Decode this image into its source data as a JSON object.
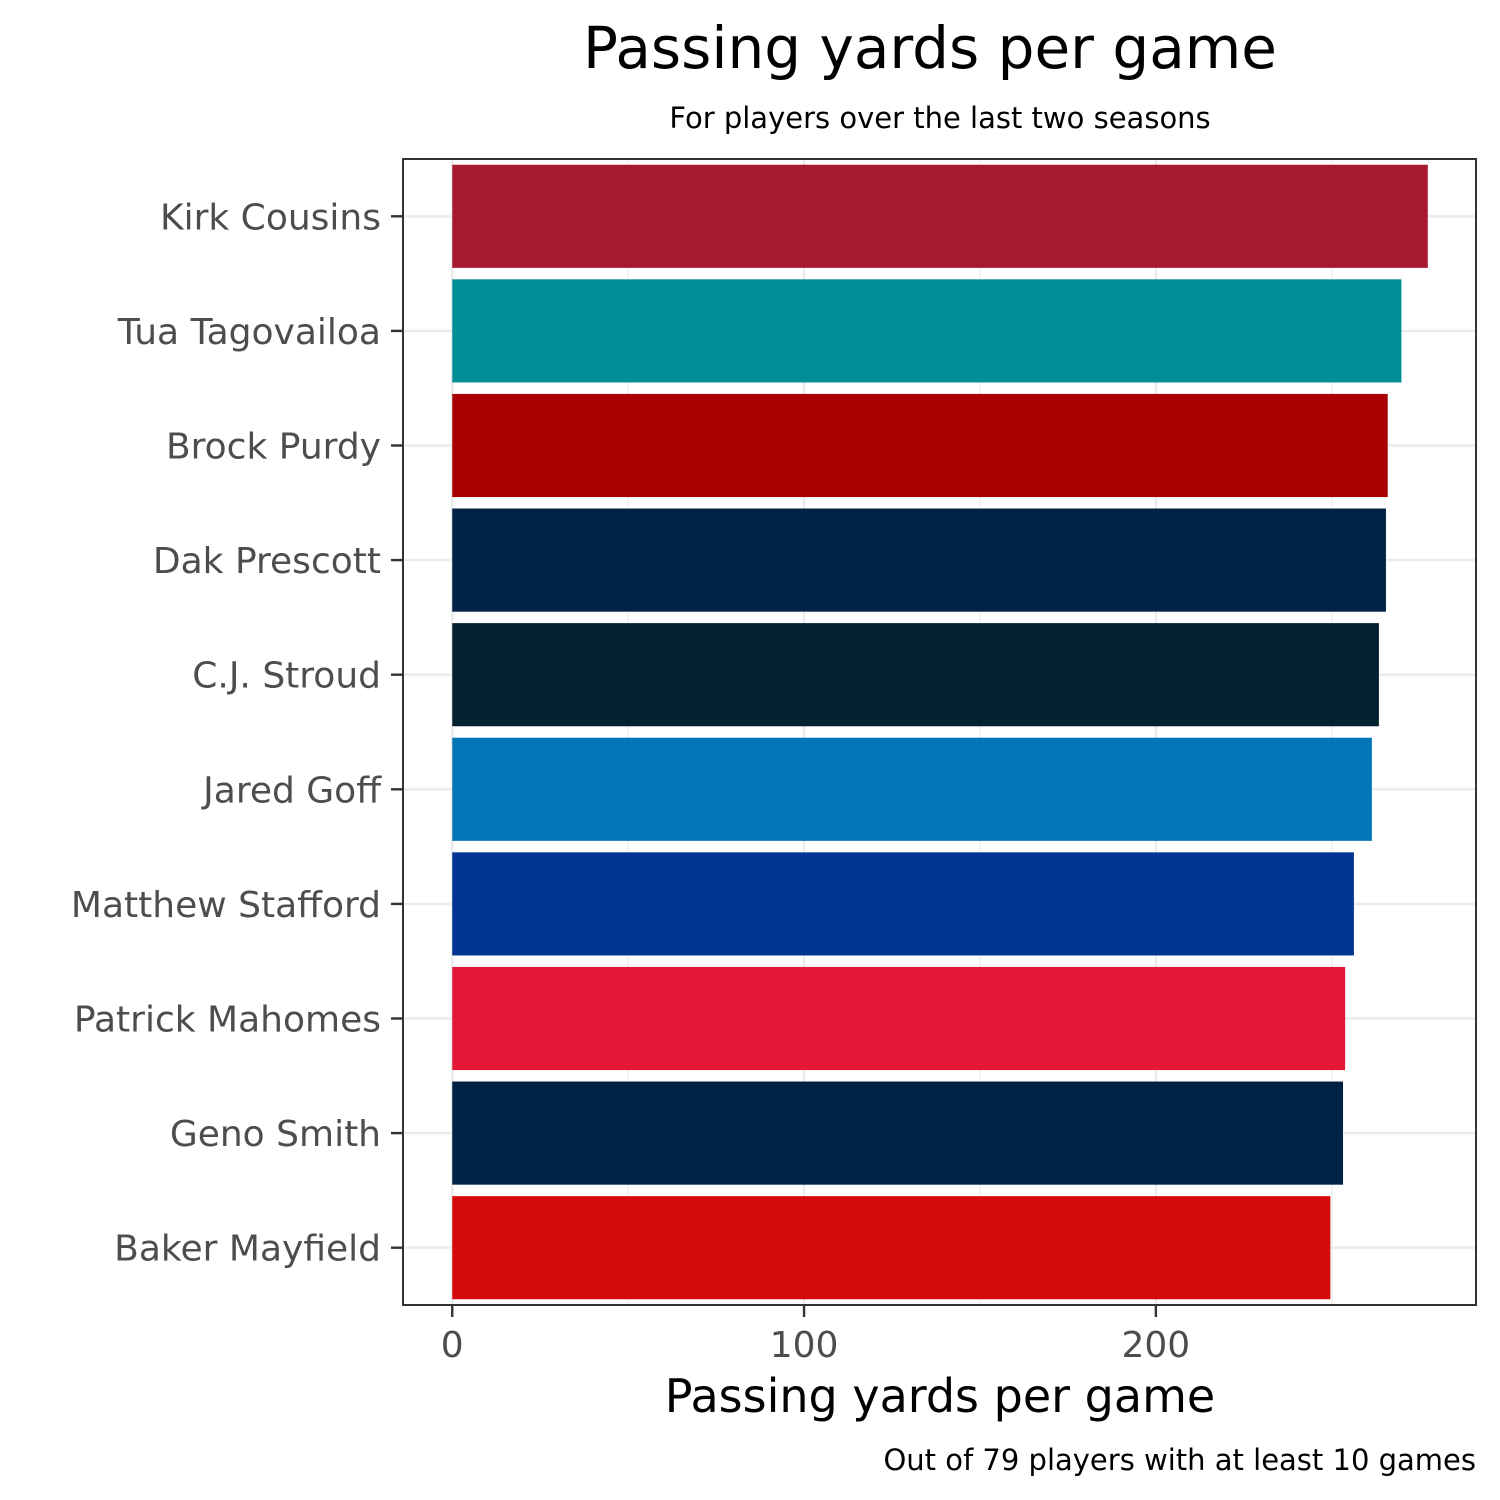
{
  "chart_data": {
    "type": "bar",
    "orientation": "horizontal",
    "title": "Passing yards per game",
    "subtitle": "For players over the last two seasons",
    "xlabel": "Passing yards per game",
    "ylabel": "",
    "caption": "Out of 79 players with at least 10 games",
    "xlim": [
      -14,
      291
    ],
    "xticks": [
      0,
      100,
      200
    ],
    "xtick_labels": [
      "0",
      "100",
      "200"
    ],
    "grid": true,
    "legend": "none",
    "categories": [
      "Kirk Cousins",
      "Tua Tagovailoa",
      "Brock Purdy",
      "Dak Prescott",
      "C.J. Stroud",
      "Jared Goff",
      "Matthew Stafford",
      "Patrick Mahomes",
      "Geno Smith",
      "Baker Mayfield"
    ],
    "values": [
      277.3,
      269.8,
      265.9,
      265.4,
      263.4,
      261.4,
      256.3,
      253.8,
      253.2,
      249.6
    ],
    "colors": [
      "#A71930",
      "#008E97",
      "#AA0000",
      "#002244",
      "#03202F",
      "#0076B6",
      "#003594",
      "#E31837",
      "#002244",
      "#D50A0A"
    ]
  }
}
